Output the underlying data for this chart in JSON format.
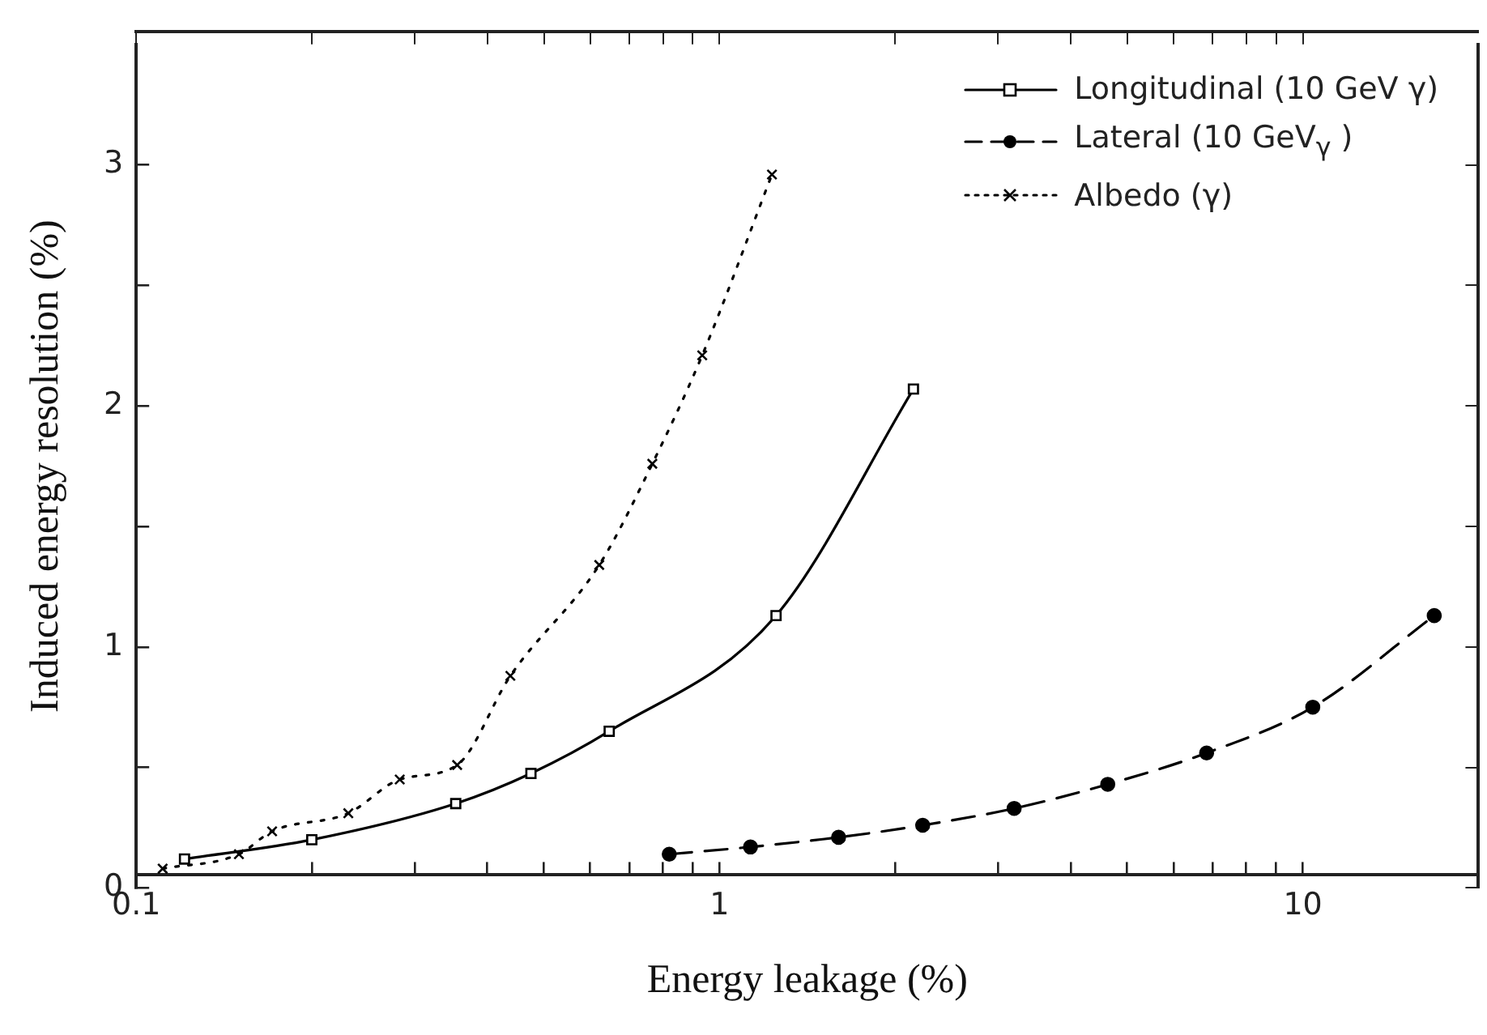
{
  "chart_data": {
    "type": "line",
    "xlabel": "Energy leakage (%)",
    "ylabel": "Induced energy resolution (%)",
    "log": "x",
    "grid": false,
    "legend": "top right",
    "xlim": [
      0.1,
      20
    ],
    "ylim": [
      0,
      3.5
    ],
    "xticks": [
      0.1,
      {
        "value": 0.2,
        "label": null
      },
      {
        "value": 0.3,
        "label": null
      },
      {
        "value": 0.4,
        "label": null
      },
      {
        "value": 0.5,
        "label": null
      },
      {
        "value": 0.6,
        "label": null
      },
      {
        "value": 0.7,
        "label": null
      },
      {
        "value": 0.8,
        "label": null
      },
      {
        "value": 0.9,
        "label": null
      },
      1,
      {
        "value": 2,
        "label": null
      },
      {
        "value": 3,
        "label": null
      },
      {
        "value": 4,
        "label": null
      },
      {
        "value": 5,
        "label": null
      },
      {
        "value": 6,
        "label": null
      },
      {
        "value": 7,
        "label": null
      },
      {
        "value": 8,
        "label": null
      },
      {
        "value": 9,
        "label": null
      },
      10
    ],
    "yticks": [
      0,
      {
        "value": 0.5,
        "label": null
      },
      1,
      {
        "value": 1.5,
        "label": null
      },
      2,
      {
        "value": 2.5,
        "label": null
      },
      3
    ],
    "series": [
      {
        "name": "Longitudinal (10 GeV γ)",
        "color": "#000000",
        "marker": "square",
        "line_style": "solid",
        "x": [
          0.121,
          0.2,
          0.353,
          0.475,
          0.647,
          1.25,
          2.15
        ],
        "values": [
          0.12,
          0.2,
          0.35,
          0.475,
          0.65,
          1.13,
          2.07
        ]
      },
      {
        "name": "Lateral (10 GeV$_{γ}$ )",
        "color": "#000000",
        "marker": "circle",
        "line_style": "dashed",
        "x": [
          0.82,
          1.13,
          1.6,
          2.23,
          3.2,
          4.63,
          6.84,
          10.4,
          16.8
        ],
        "values": [
          0.14,
          0.17,
          0.21,
          0.26,
          0.33,
          0.43,
          0.56,
          0.75,
          1.13
        ]
      },
      {
        "name": "Albedo (γ)",
        "color": "#000000",
        "marker": "cross",
        "line_style": "dotted",
        "x": [
          0.111,
          0.15,
          0.171,
          0.231,
          0.283,
          0.355,
          0.438,
          0.622,
          0.767,
          0.934,
          1.23
        ],
        "values": [
          0.08,
          0.14,
          0.235,
          0.31,
          0.45,
          0.51,
          0.88,
          1.34,
          1.76,
          2.21,
          2.96
        ]
      }
    ]
  }
}
